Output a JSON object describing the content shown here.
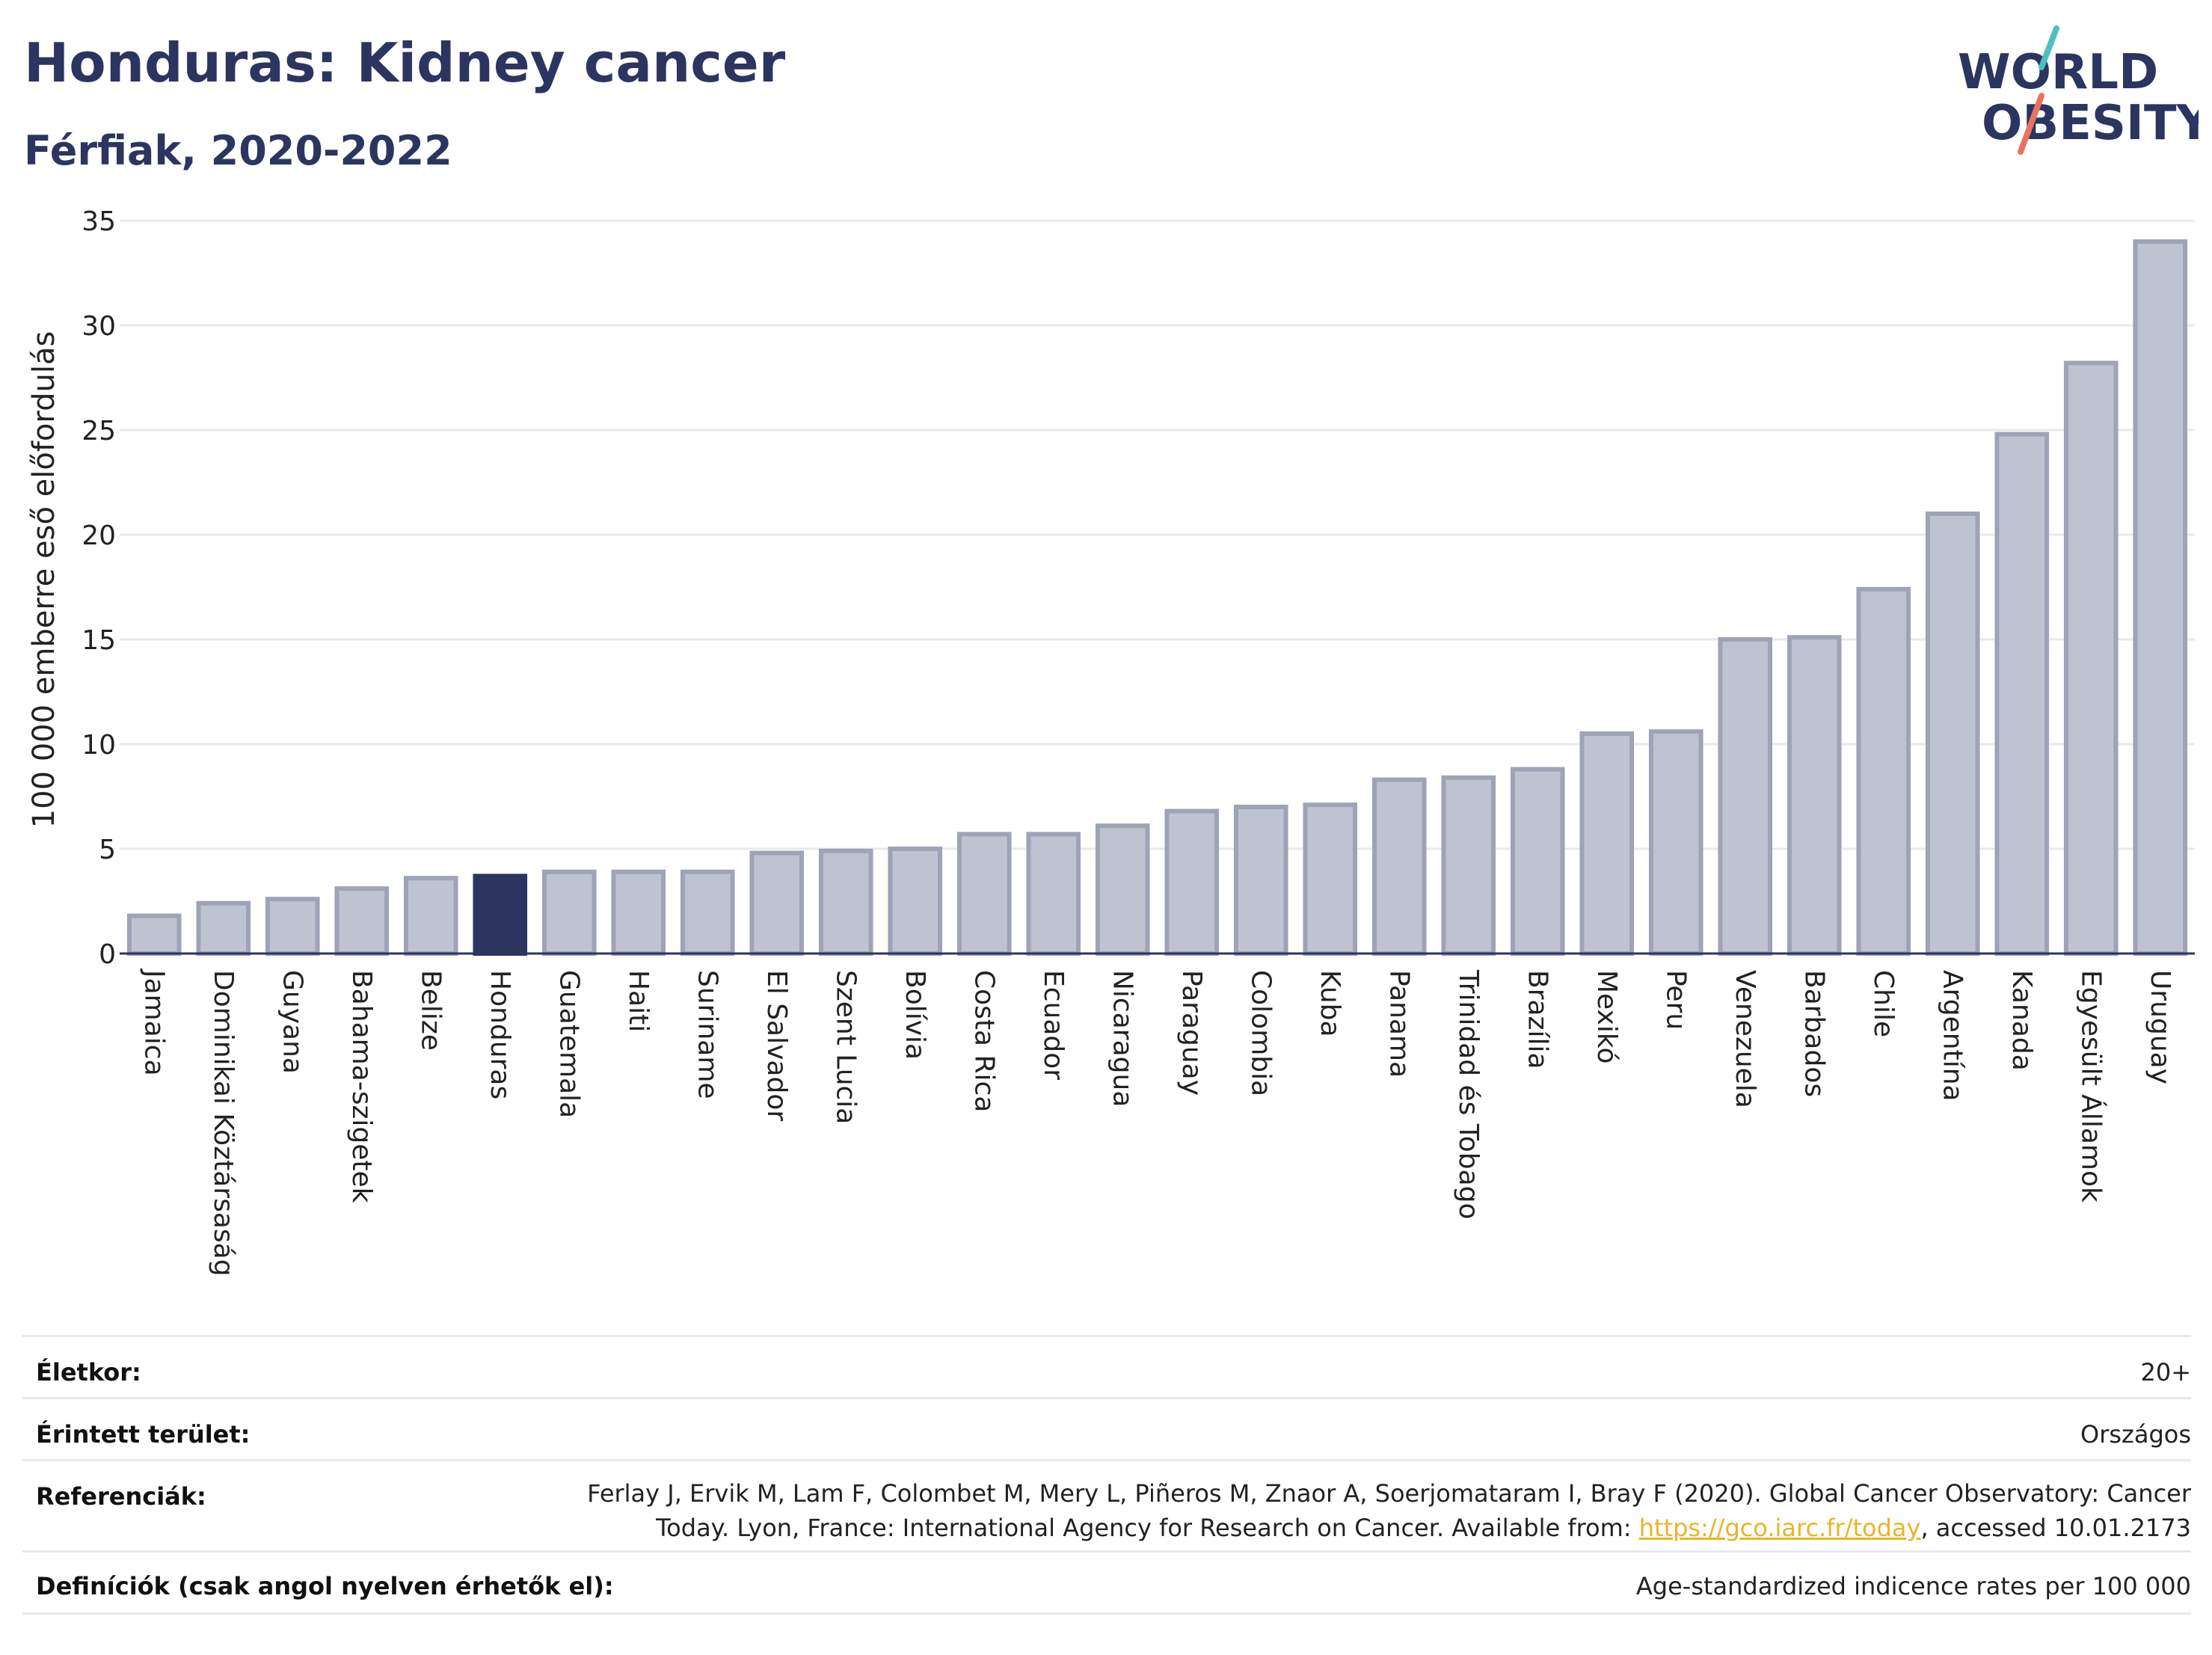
{
  "header": {
    "title": "Honduras: Kidney cancer",
    "subtitle": "Férfiak, 2020-2022"
  },
  "logo": {
    "line1": "WORLD",
    "line2": "OBESITY"
  },
  "colors": {
    "title": "#2b3560",
    "bar_default": "#bfc3d1",
    "bar_default_border": "#9ea3b8",
    "bar_highlight": "#2b3560",
    "grid": "#e8eaee",
    "logo_text": "#2b3560",
    "logo_slash_red": "#e8735f",
    "logo_slash_teal": "#4bc0c0",
    "link": "#e8b52a"
  },
  "chart_data": {
    "type": "bar",
    "ylabel": "100 000 emberre eső előfordulás",
    "xlabel": "",
    "ylim": [
      0,
      35
    ],
    "yticks": [
      0,
      5,
      10,
      15,
      20,
      25,
      30,
      35
    ],
    "grid": true,
    "highlight": "Honduras",
    "categories": [
      "Jamaica",
      "Dominikai Köztársaság",
      "Guyana",
      "Bahama-szigetek",
      "Belize",
      "Honduras",
      "Guatemala",
      "Haiti",
      "Suriname",
      "El Salvador",
      "Szent Lucia",
      "Bolívia",
      "Costa Rica",
      "Ecuador",
      "Nicaragua",
      "Paraguay",
      "Colombia",
      "Kuba",
      "Panama",
      "Trinidad és Tobago",
      "Brazília",
      "Mexikó",
      "Peru",
      "Venezuela",
      "Barbados",
      "Chile",
      "Argentína",
      "Kanada",
      "Egyesült Államok",
      "Uruguay"
    ],
    "values": [
      1.8,
      2.4,
      2.6,
      3.1,
      3.6,
      3.7,
      3.9,
      3.9,
      3.9,
      4.8,
      4.9,
      5.0,
      5.7,
      5.7,
      6.1,
      6.8,
      7.0,
      7.1,
      8.3,
      8.4,
      8.8,
      10.5,
      10.6,
      15.0,
      15.1,
      17.4,
      21.0,
      24.8,
      28.2,
      34.0
    ]
  },
  "meta": {
    "age": {
      "label": "Életkor:",
      "value": "20+"
    },
    "area": {
      "label": "Érintett terület:",
      "value": "Országos"
    },
    "refs": {
      "label": "Referenciák:",
      "text_line1": "Ferlay J, Ervik M, Lam F, Colombet M, Mery L, Piñeros M, Znaor A, Soerjomataram I, Bray F (2020). Global Cancer Observatory: Cancer",
      "text_before_link": "Today. Lyon, France: International Agency for Research on Cancer. Available from: ",
      "link": "https://gco.iarc.fr/today",
      "text_after_link": ", accessed 10.01.2173"
    },
    "defs": {
      "label": "Definíciók (csak angol nyelven érhetők el):",
      "value": "Age-standardized indicence rates per 100 000"
    }
  }
}
